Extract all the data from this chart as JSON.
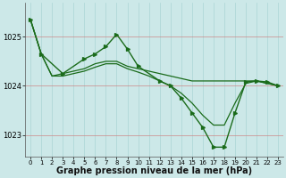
{
  "background_color": "#cce8e8",
  "grid_color_v": "#aad4d4",
  "grid_color_h": "#cc8888",
  "line_color": "#1a6b1a",
  "xlabel": "Graphe pression niveau de la mer (hPa)",
  "xlabel_fontsize": 7,
  "ylim": [
    1022.55,
    1025.7
  ],
  "yticks": [
    1023,
    1024,
    1025
  ],
  "xlim": [
    -0.5,
    23.5
  ],
  "xticks": [
    0,
    1,
    2,
    3,
    4,
    5,
    6,
    7,
    8,
    9,
    10,
    11,
    12,
    13,
    14,
    15,
    16,
    17,
    18,
    19,
    20,
    21,
    22,
    23
  ],
  "series": [
    {
      "x": [
        0,
        1,
        2,
        3,
        4,
        5,
        6,
        7,
        8,
        9,
        10,
        11,
        12,
        13,
        14,
        15,
        16,
        17,
        18,
        19,
        20,
        21,
        22,
        23
      ],
      "y": [
        1025.35,
        1024.65,
        1024.2,
        1024.25,
        1024.3,
        1024.35,
        1024.45,
        1024.5,
        1024.5,
        1024.4,
        1024.35,
        1024.3,
        1024.25,
        1024.2,
        1024.15,
        1024.1,
        1024.1,
        1024.1,
        1024.1,
        1024.1,
        1024.1,
        1024.1,
        1024.05,
        1024.0
      ],
      "marker": false,
      "lw": 0.9
    },
    {
      "x": [
        0,
        1,
        2,
        3,
        4,
        5,
        6,
        7,
        8,
        9,
        10,
        11,
        12,
        13,
        14,
        15,
        16,
        17,
        18,
        19,
        20,
        21,
        22,
        23
      ],
      "y": [
        1025.35,
        1024.65,
        1024.2,
        1024.2,
        1024.25,
        1024.3,
        1024.38,
        1024.45,
        1024.45,
        1024.35,
        1024.28,
        1024.2,
        1024.1,
        1024.0,
        1023.85,
        1023.65,
        1023.4,
        1023.2,
        1023.2,
        1023.65,
        1024.05,
        1024.1,
        1024.05,
        1024.0
      ],
      "marker": false,
      "lw": 0.9
    },
    {
      "x": [
        0,
        1,
        3,
        5,
        6,
        7,
        8,
        9,
        10,
        12,
        13,
        14,
        15,
        16,
        17,
        18,
        19,
        20,
        21,
        22,
        23
      ],
      "y": [
        1025.35,
        1024.65,
        1024.25,
        1024.55,
        1024.65,
        1024.8,
        1025.05,
        1024.75,
        1024.4,
        1024.1,
        1024.0,
        1023.75,
        1023.45,
        1023.15,
        1022.75,
        1022.75,
        1023.45,
        1024.08,
        1024.1,
        1024.08,
        1024.0
      ],
      "marker": true,
      "lw": 1.0
    }
  ]
}
